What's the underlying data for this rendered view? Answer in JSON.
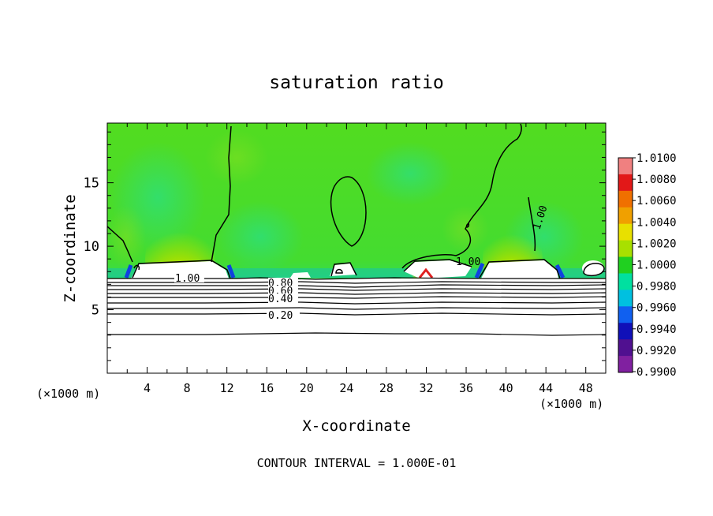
{
  "chart_data": {
    "type": "heatmap",
    "title": "saturation ratio",
    "xlabel": "X-coordinate",
    "ylabel": "Z-coordinate",
    "x_unit": "(×1000 m)",
    "x_unit_right": "(×1000 m)",
    "xlim": [
      0,
      50
    ],
    "ylim": [
      0,
      19.7
    ],
    "x_ticks": [
      "4",
      "8",
      "12",
      "16",
      "20",
      "24",
      "28",
      "32",
      "36",
      "40",
      "44",
      "48"
    ],
    "y_ticks": [
      "5",
      "10",
      "15"
    ],
    "colorbar": {
      "labels": [
        "1.0100",
        "1.0080",
        "1.0060",
        "1.0040",
        "1.0020",
        "1.0000",
        "0.9980",
        "0.9960",
        "0.9940",
        "0.9920",
        "0.9900"
      ],
      "colors": [
        "#f08080",
        "#e21818",
        "#f07000",
        "#f0a000",
        "#e8e000",
        "#a8e000",
        "#20d020",
        "#00e0a0",
        "#00c0e0",
        "#1060f0",
        "#1010b8",
        "#501090",
        "#8020a0"
      ]
    },
    "contour_labels": [
      "1.00",
      "0.80",
      "0.60",
      "0.40",
      "0.20",
      "1.00",
      "1.00"
    ],
    "footer": "CONTOUR INTERVAL = 1.000E-01"
  }
}
